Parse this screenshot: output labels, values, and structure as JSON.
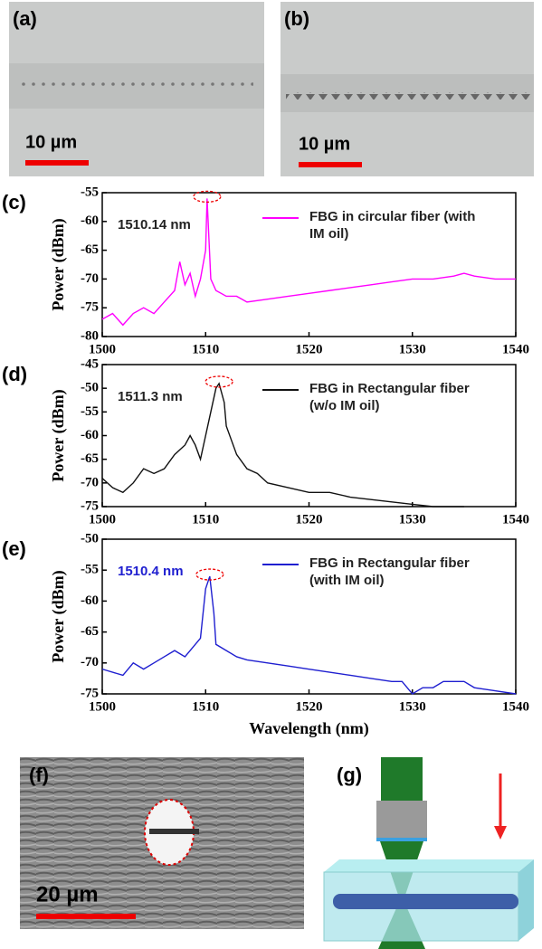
{
  "panels": {
    "a": {
      "label": "(a)",
      "scale_bar": "10 µm"
    },
    "b": {
      "label": "(b)",
      "scale_bar": "10 µm"
    },
    "f": {
      "label": "(f)",
      "scale_bar": "20 µm"
    },
    "g": {
      "label": "(g)"
    }
  },
  "chart_data": [
    {
      "type": "line",
      "panel_label": "(c)",
      "annotation": "1510.14 nm",
      "annotation_color": "#222222",
      "y_label": "Power (dBm)",
      "x": [
        1500,
        1501,
        1502,
        1503,
        1504,
        1505,
        1506,
        1507,
        1507.5,
        1508,
        1508.5,
        1509,
        1509.5,
        1510,
        1510.14,
        1510.5,
        1511,
        1512,
        1513,
        1514,
        1516,
        1518,
        1520,
        1522,
        1524,
        1526,
        1528,
        1530,
        1532,
        1534,
        1535,
        1536,
        1538,
        1540
      ],
      "series": [
        {
          "name": "FBG in circular fiber (with IM oil)",
          "color": "#ff00ff",
          "values": [
            -77,
            -76,
            -78,
            -76,
            -75,
            -76,
            -74,
            -72,
            -67,
            -71,
            -69,
            -73,
            -70,
            -65,
            -56,
            -70,
            -72,
            -73,
            -73,
            -74,
            -73.5,
            -73,
            -72.5,
            -72,
            -71.5,
            -71,
            -70.5,
            -70,
            -70,
            -69.5,
            -69,
            -69.5,
            -70,
            -70
          ]
        }
      ],
      "xlim": [
        1500,
        1540
      ],
      "ylim": [
        -80,
        -55
      ],
      "xticks": [
        1500,
        1510,
        1520,
        1530,
        1540
      ],
      "yticks": [
        -55,
        -60,
        -65,
        -70,
        -75,
        -80
      ]
    },
    {
      "type": "line",
      "panel_label": "(d)",
      "annotation": "1511.3 nm",
      "annotation_color": "#222222",
      "y_label": "Power (dBm)",
      "x": [
        1500,
        1501,
        1502,
        1503,
        1504,
        1505,
        1506,
        1507,
        1508,
        1508.5,
        1509,
        1509.5,
        1510,
        1510.5,
        1511,
        1511.3,
        1511.8,
        1512,
        1513,
        1514,
        1515,
        1516,
        1518,
        1520,
        1522,
        1524,
        1526,
        1528,
        1530,
        1532,
        1535
      ],
      "series": [
        {
          "name": "FBG in Rectangular fiber (w/o IM oil)",
          "color": "#111111",
          "values": [
            -69,
            -71,
            -72,
            -70,
            -67,
            -68,
            -67,
            -64,
            -62,
            -60,
            -62,
            -65,
            -60,
            -55,
            -50,
            -49,
            -53,
            -58,
            -64,
            -67,
            -68,
            -70,
            -71,
            -72,
            -72,
            -73,
            -73.5,
            -74,
            -74.5,
            -75,
            -75
          ]
        }
      ],
      "xlim": [
        1500,
        1540
      ],
      "ylim": [
        -75,
        -45
      ],
      "xticks": [
        1500,
        1510,
        1520,
        1530,
        1540
      ],
      "yticks": [
        -45,
        -50,
        -55,
        -60,
        -65,
        -70,
        -75
      ]
    },
    {
      "type": "line",
      "panel_label": "(e)",
      "annotation": "1510.4 nm",
      "annotation_color": "#1f1fd0",
      "y_label": "Power (dBm)",
      "x_label": "Wavelength (nm)",
      "x": [
        1500,
        1502,
        1503,
        1504,
        1505,
        1506,
        1507,
        1508,
        1509,
        1509.5,
        1510,
        1510.4,
        1510.8,
        1511,
        1512,
        1513,
        1514,
        1516,
        1518,
        1520,
        1522,
        1524,
        1526,
        1528,
        1529,
        1530,
        1531,
        1532,
        1533,
        1535,
        1536,
        1538,
        1540
      ],
      "series": [
        {
          "name": "FBG in Rectangular fiber (with IM oil)",
          "color": "#1f1fd0",
          "values": [
            -71,
            -72,
            -70,
            -71,
            -70,
            -69,
            -68,
            -69,
            -67,
            -66,
            -58,
            -56,
            -62,
            -67,
            -68,
            -69,
            -69.5,
            -70,
            -70.5,
            -71,
            -71.5,
            -72,
            -72.5,
            -73,
            -73,
            -75,
            -74,
            -74,
            -73,
            -73,
            -74,
            -74.5,
            -75
          ]
        }
      ],
      "xlim": [
        1500,
        1540
      ],
      "ylim": [
        -75,
        -50
      ],
      "xticks": [
        1500,
        1510,
        1520,
        1530,
        1540
      ],
      "yticks": [
        -50,
        -55,
        -60,
        -65,
        -70,
        -75
      ]
    }
  ]
}
